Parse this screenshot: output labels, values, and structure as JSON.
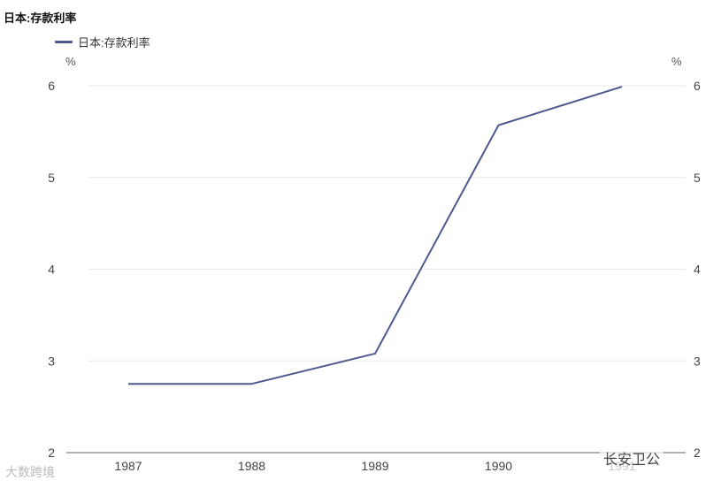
{
  "chart_data": {
    "type": "line",
    "title": "日本:存款利率",
    "x": [
      "1987",
      "1988",
      "1989",
      "1990",
      "1991"
    ],
    "series": [
      {
        "name": "日本:存款利率",
        "color": "#4e5a8f",
        "values": [
          2.75,
          2.75,
          3.08,
          5.57,
          5.99
        ]
      }
    ],
    "ylim": [
      2,
      6
    ],
    "yticks": [
      2,
      3,
      4,
      5,
      6
    ],
    "ylabel_left": "%",
    "ylabel_right": "%",
    "grid": true,
    "legend_position": "top-left"
  },
  "watermarks": {
    "left": "大数跨境",
    "right": "长安卫公"
  }
}
